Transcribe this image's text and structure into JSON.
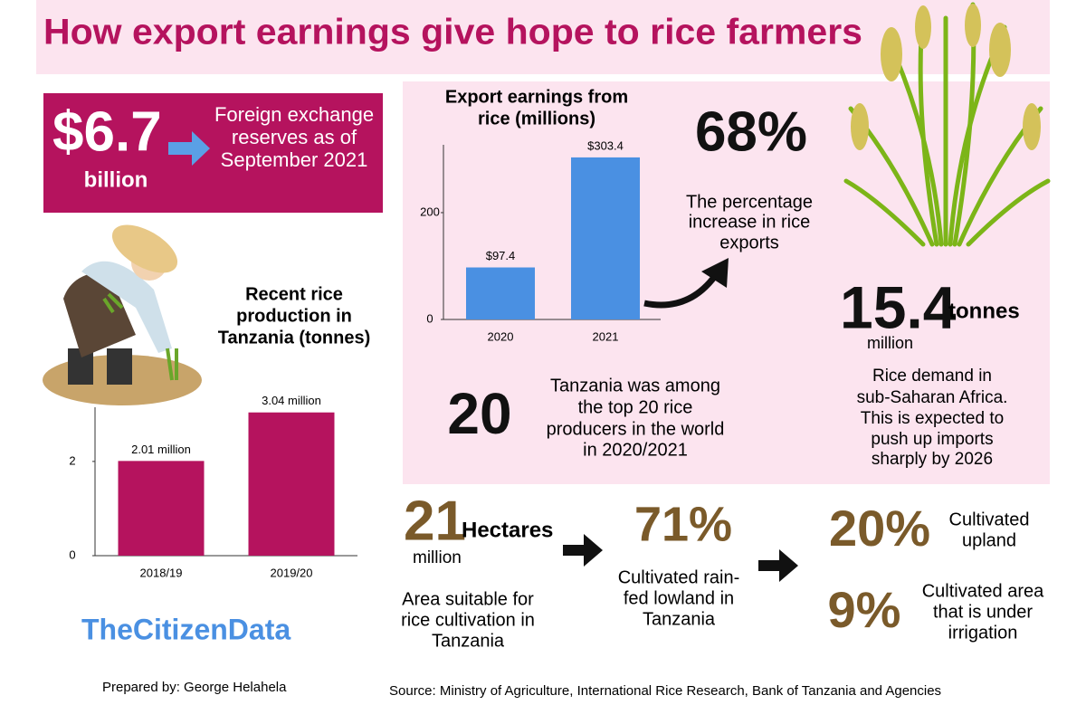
{
  "title": "How export earnings give hope to rice farmers",
  "reserves": {
    "value": "$6.7",
    "unit": "billion",
    "text": [
      "Foreign exchange",
      "reserves as of",
      "September 2021"
    ]
  },
  "export_increase": {
    "value": "68%",
    "text": [
      "The percentage",
      "increase in rice",
      "exports"
    ]
  },
  "demand": {
    "value": "15.4",
    "scale": "million",
    "unit": "tonnes",
    "text": [
      "Rice demand in",
      "sub-Saharan Africa.",
      "This is expected to",
      "push up imports",
      "sharply by 2026"
    ]
  },
  "rank": {
    "value": "20",
    "text": [
      "Tanzania was among",
      "the top 20 rice",
      "producers in the world",
      "in 2020/2021"
    ]
  },
  "land": {
    "value": "21",
    "scale": "million",
    "unit": "Hectares",
    "text": [
      "Area suitable for",
      "rice cultivation in",
      "Tanzania"
    ]
  },
  "lowland": {
    "value": "71%",
    "text": [
      "Cultivated rain-",
      "fed lowland in",
      "Tanzania"
    ]
  },
  "upland": {
    "value": "20%",
    "text": [
      "Cultivated",
      "upland"
    ]
  },
  "irrigation": {
    "value": "9%",
    "text": [
      "Cultivated area",
      "that is under",
      "irrigation"
    ]
  },
  "brand": "TheCitizenData",
  "credit": "Prepared by: George Helahela",
  "source": "Source: Ministry of Agriculture, International Rice Research, Bank of Tanzania and Agencies",
  "chart_data": [
    {
      "type": "bar",
      "title": [
        "Export earnings from",
        "rice (millions)"
      ],
      "categories": [
        "2020",
        "2021"
      ],
      "values": [
        97.4,
        303.4
      ],
      "value_labels": [
        "$97.4",
        "$303.4"
      ],
      "color": "#4a90e2",
      "ylim": [
        0,
        327
      ],
      "yticks": [
        0,
        200
      ]
    },
    {
      "type": "bar",
      "title": [
        "Recent rice",
        "production in",
        "Tanzania (tonnes)"
      ],
      "categories": [
        "2018/19",
        "2019/20"
      ],
      "values": [
        2.01,
        3.04
      ],
      "value_labels": [
        "2.01 million",
        "3.04 million"
      ],
      "color": "#b5135e",
      "ylim": [
        0,
        3.15
      ],
      "yticks": [
        0,
        2
      ]
    }
  ]
}
